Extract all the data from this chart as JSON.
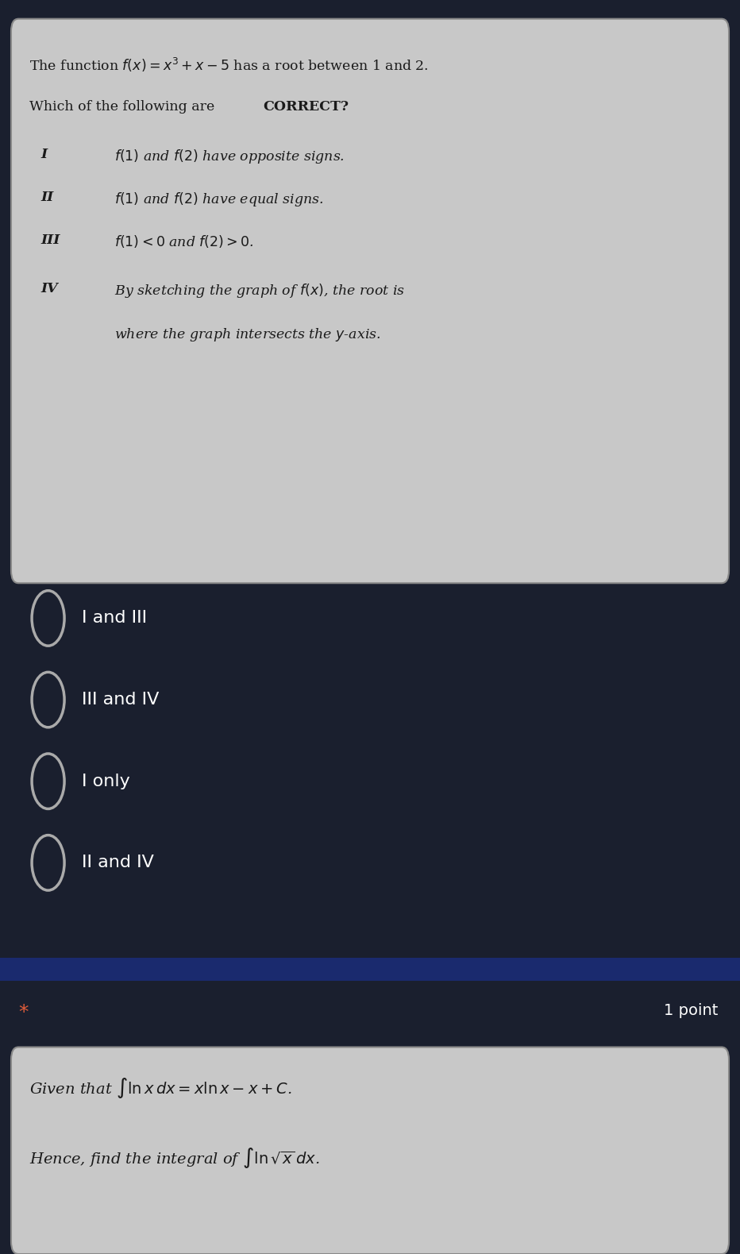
{
  "bg_dark": "#1a1f2e",
  "bg_card": "#c8c8c8",
  "bg_bottom_card": "#c8c8c8",
  "blue_bar": "#1a2a6e",
  "text_white": "#ffffff",
  "text_dark": "#1a1a1a",
  "asterisk_color": "#e05c3a",
  "radio_color": "#aaaaaa",
  "figsize": [
    9.32,
    15.79
  ],
  "dpi": 100,
  "question1": {
    "header": "The function $f(x)=x^3+x-5$ has a root between 1 and 2.",
    "subheader": "Which of the following are \\textbf{CORRECT?}",
    "options": [
      {
        "label": "I",
        "text": "$f(1)$ and $f(2)$ have opposite signs."
      },
      {
        "label": "II",
        "text": "$f(1)$ and $f(2)$ have equal signs."
      },
      {
        "label": "III",
        "text": "$f(1)<0$ and $f(2)>0$."
      },
      {
        "label": "IV",
        "text": "By sketching the graph of $f(x)$, the root is\n         where the graph intersects the $y$-axis."
      }
    ],
    "answers": [
      "I and III",
      "III and IV",
      "I only",
      "II and IV"
    ]
  },
  "question2": {
    "given": "Given that $\\int \\ln x\\, dx = x\\ln x - x + C$.",
    "find": "Hence, find the integral of $\\int \\ln \\sqrt{x}\\, dx$."
  }
}
